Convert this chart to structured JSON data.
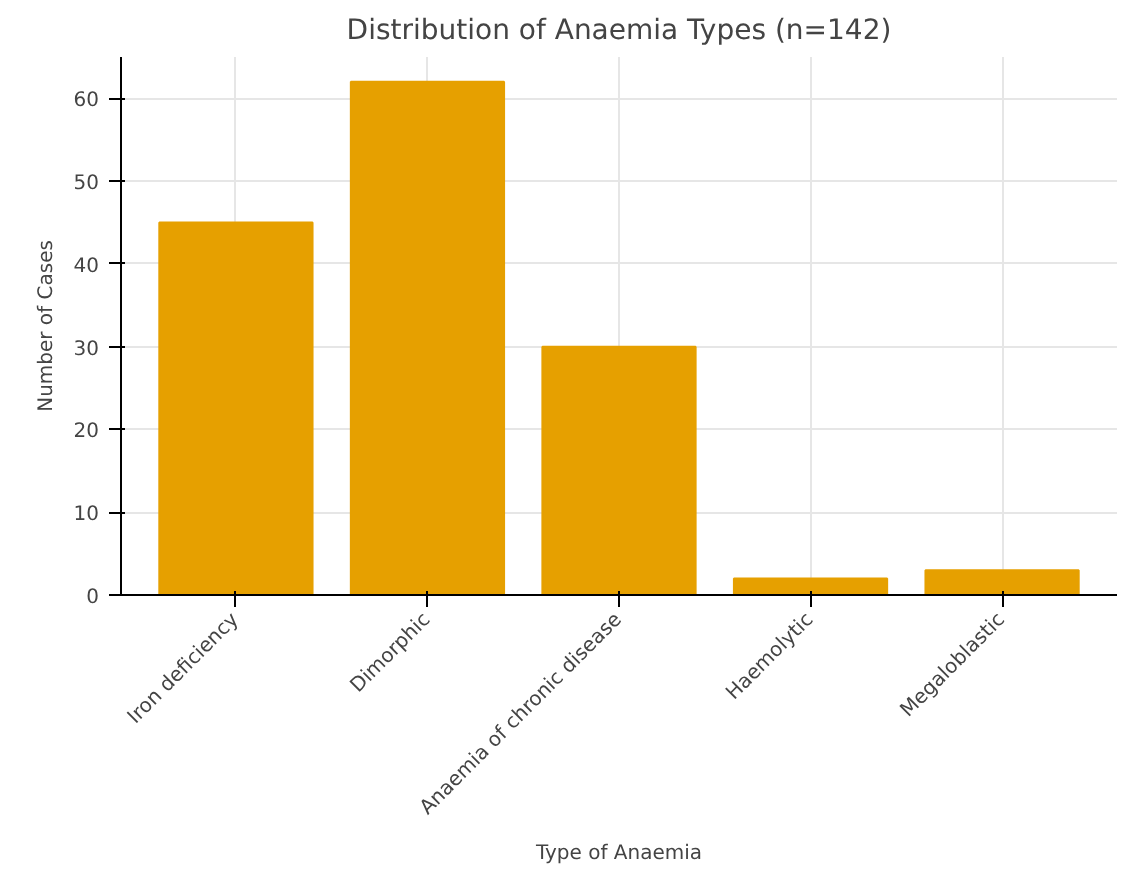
{
  "chart_data": {
    "type": "bar",
    "title": "Distribution of Anaemia Types (n=142)",
    "xlabel": "Type of Anaemia",
    "ylabel": "Number of Cases",
    "categories": [
      "Iron deficiency",
      "Dimorphic",
      "Anaemia of chronic disease",
      "Haemolytic",
      "Megaloblastic"
    ],
    "values": [
      45,
      62,
      30,
      2,
      3
    ],
    "color": "#e6a000",
    "ylim": [
      0,
      65
    ],
    "yticks": [
      0,
      10,
      20,
      30,
      40,
      50,
      60
    ],
    "grid": true
  }
}
